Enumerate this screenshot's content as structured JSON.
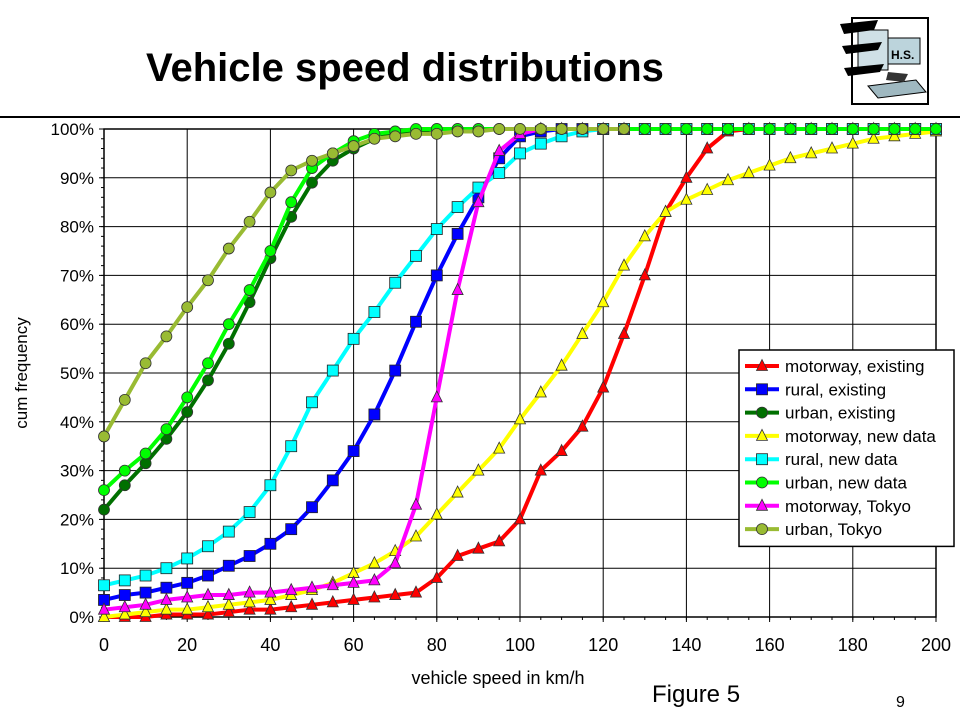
{
  "slide": {
    "title": "Vehicle speed distributions",
    "figure_label": "Figure 5",
    "page_number": "9",
    "logo_text": "H.S."
  },
  "chart_data": {
    "type": "line",
    "title": "",
    "xlabel": "vehicle speed in km/h",
    "ylabel": "cum frequency",
    "xlim": [
      0,
      200
    ],
    "ylim": [
      0,
      100
    ],
    "x_ticks": [
      0,
      20,
      40,
      60,
      80,
      100,
      120,
      140,
      160,
      180,
      200
    ],
    "y_ticks": [
      "0%",
      "10%",
      "20%",
      "30%",
      "40%",
      "50%",
      "60%",
      "70%",
      "80%",
      "90%",
      "100%"
    ],
    "grid": true,
    "legend_position": "lower-right",
    "series": [
      {
        "name": "motorway, existing",
        "color": "#ff0000",
        "marker": "triangle",
        "x": [
          0,
          5,
          10,
          15,
          20,
          25,
          30,
          35,
          40,
          45,
          50,
          55,
          60,
          65,
          70,
          75,
          80,
          85,
          90,
          95,
          100,
          105,
          110,
          115,
          120,
          125,
          130,
          135,
          140,
          145,
          150,
          155,
          160,
          165,
          170,
          175,
          180,
          185,
          190,
          195,
          200
        ],
        "y": [
          0,
          0,
          0,
          0.5,
          0.5,
          0.5,
          1,
          1.5,
          1.5,
          2,
          2.5,
          3,
          3.5,
          4,
          4.5,
          5,
          8,
          12.5,
          14,
          15.5,
          20,
          30,
          34,
          39,
          47,
          58,
          70,
          83,
          90,
          96,
          99.5,
          100,
          100,
          100,
          100,
          100,
          100,
          100,
          100,
          100,
          100
        ]
      },
      {
        "name": "rural, existing",
        "color": "#0000ff",
        "marker": "square",
        "x": [
          0,
          5,
          10,
          15,
          20,
          25,
          30,
          35,
          40,
          45,
          50,
          55,
          60,
          65,
          70,
          75,
          80,
          85,
          90,
          95,
          100,
          105,
          110,
          115,
          120,
          125,
          130,
          135,
          140,
          145,
          150,
          155,
          160,
          165,
          170,
          175,
          180,
          185,
          190,
          195,
          200
        ],
        "y": [
          3.5,
          4.5,
          5,
          6,
          7,
          8.5,
          10.5,
          12.5,
          15,
          18,
          22.5,
          28,
          34,
          41.5,
          50.5,
          60.5,
          70,
          78.5,
          86,
          94,
          98.5,
          99.5,
          100,
          100,
          100,
          100,
          100,
          100,
          100,
          100,
          100,
          100,
          100,
          100,
          100,
          100,
          100,
          100,
          100,
          100,
          100
        ]
      },
      {
        "name": "urban, existing",
        "color": "#007000",
        "marker": "circle",
        "x": [
          0,
          5,
          10,
          15,
          20,
          25,
          30,
          35,
          40,
          45,
          50,
          55,
          60,
          65,
          70,
          75,
          80,
          85,
          90,
          95,
          100,
          105,
          110,
          115,
          120,
          125
        ],
        "y": [
          22,
          27,
          31.5,
          36.5,
          42,
          48.5,
          56,
          64.5,
          73.5,
          82,
          89,
          93.5,
          96,
          98,
          99,
          99.5,
          100,
          100,
          100,
          100,
          100,
          100,
          100,
          100,
          100,
          100
        ]
      },
      {
        "name": "motorway, new data",
        "color": "#ffff00",
        "marker": "triangle",
        "x": [
          0,
          5,
          10,
          15,
          20,
          25,
          30,
          35,
          40,
          45,
          50,
          55,
          60,
          65,
          70,
          75,
          80,
          85,
          90,
          95,
          100,
          105,
          110,
          115,
          120,
          125,
          130,
          135,
          140,
          145,
          150,
          155,
          160,
          165,
          170,
          175,
          180,
          185,
          190,
          195,
          200
        ],
        "y": [
          0,
          0.5,
          1,
          1.5,
          1.5,
          2,
          2.5,
          3,
          3.5,
          4.5,
          5.5,
          7,
          9,
          11,
          13.5,
          16.5,
          21,
          25.5,
          30,
          34.5,
          40.5,
          46,
          51.5,
          58,
          64.5,
          72,
          78,
          83,
          85.5,
          87.5,
          89.5,
          91,
          92.5,
          94,
          95,
          96,
          97,
          98,
          98.5,
          99,
          99.5
        ]
      },
      {
        "name": "rural, new data",
        "color": "#00ffff",
        "marker": "square",
        "x": [
          0,
          5,
          10,
          15,
          20,
          25,
          30,
          35,
          40,
          45,
          50,
          55,
          60,
          65,
          70,
          75,
          80,
          85,
          90,
          95,
          100,
          105,
          110,
          115,
          120,
          125,
          130,
          135,
          140,
          145,
          150,
          155,
          160,
          165,
          170,
          175,
          180,
          185,
          190,
          195,
          200
        ],
        "y": [
          6.5,
          7.5,
          8.5,
          10,
          12,
          14.5,
          17.5,
          21.5,
          27,
          35,
          44,
          50.5,
          57,
          62.5,
          68.5,
          74,
          79.5,
          84,
          88,
          91,
          95,
          97,
          98.5,
          99.5,
          100,
          100,
          100,
          100,
          100,
          100,
          100,
          100,
          100,
          100,
          100,
          100,
          100,
          100,
          100,
          100,
          100
        ]
      },
      {
        "name": "urban, new data",
        "color": "#00ff00",
        "marker": "circle",
        "x": [
          0,
          5,
          10,
          15,
          20,
          25,
          30,
          35,
          40,
          45,
          50,
          55,
          60,
          65,
          70,
          75,
          80,
          85,
          90,
          95,
          100,
          105,
          110,
          115,
          120,
          125,
          130,
          135,
          140,
          145,
          150,
          155,
          160,
          165,
          170,
          175,
          180,
          185,
          190,
          195,
          200
        ],
        "y": [
          26,
          30,
          33.5,
          38.5,
          45,
          52,
          60,
          67,
          75,
          85,
          92,
          95,
          97.5,
          99,
          99.5,
          100,
          100,
          100,
          100,
          100,
          100,
          100,
          100,
          100,
          100,
          100,
          100,
          100,
          100,
          100,
          100,
          100,
          100,
          100,
          100,
          100,
          100,
          100,
          100,
          100,
          100
        ]
      },
      {
        "name": "motorway, Tokyo",
        "color": "#ff00ff",
        "marker": "triangle",
        "x": [
          0,
          5,
          10,
          15,
          20,
          25,
          30,
          35,
          40,
          45,
          50,
          55,
          60,
          65,
          70,
          75,
          80,
          85,
          90,
          95,
          100,
          105,
          110,
          115,
          120,
          125
        ],
        "y": [
          1.5,
          2,
          2.5,
          3.5,
          4,
          4.5,
          4.5,
          5,
          5,
          5.5,
          6,
          6.5,
          7,
          7.5,
          11,
          23,
          45,
          67,
          85,
          95.5,
          99,
          100,
          100,
          100,
          100,
          100
        ]
      },
      {
        "name": "urban, Tokyo",
        "color": "#99bb33",
        "marker": "circle",
        "x": [
          0,
          5,
          10,
          15,
          20,
          25,
          30,
          35,
          40,
          45,
          50,
          55,
          60,
          65,
          70,
          75,
          80,
          85,
          90,
          95,
          100,
          105,
          110,
          115,
          120,
          125
        ],
        "y": [
          37,
          44.5,
          52,
          57.5,
          63.5,
          69,
          75.5,
          81,
          87,
          91.5,
          93.5,
          95,
          96.5,
          98,
          98.5,
          99,
          99,
          99.5,
          99.5,
          100,
          100,
          100,
          100,
          100,
          100,
          100
        ]
      }
    ]
  }
}
